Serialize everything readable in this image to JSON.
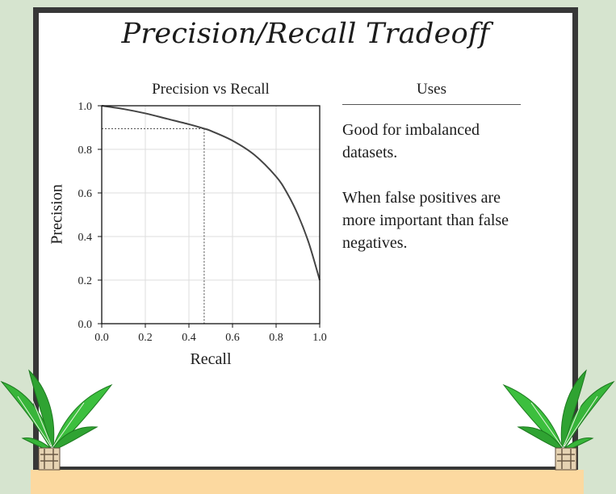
{
  "title": "Precision/Recall Tradeoff",
  "uses": {
    "heading": "Uses",
    "items": [
      "Good for imbalanced datasets.",
      "When false positives are more important than false negatives."
    ]
  },
  "colors": {
    "board_frame": "#373737",
    "background": "#d6e4cf",
    "shelf": "#fcd9a0",
    "curve": "#444444",
    "grid": "#dddddd",
    "leaf": "#2e9e2e"
  },
  "icons": [
    "potted-plant-icon",
    "potted-plant-icon"
  ],
  "chart_data": {
    "type": "line",
    "title": "Precision vs Recall",
    "xlabel": "Recall",
    "ylabel": "Precision",
    "xlim": [
      0,
      1
    ],
    "ylim": [
      0,
      1
    ],
    "x_ticks": [
      "0.0",
      "0.2",
      "0.4",
      "0.6",
      "0.8",
      "1.0"
    ],
    "y_ticks": [
      "0.0",
      "0.2",
      "0.4",
      "0.6",
      "0.8",
      "1.0"
    ],
    "grid": true,
    "legend": "none",
    "series": [
      {
        "x": [
          0.0,
          0.1,
          0.2,
          0.3,
          0.4,
          0.47,
          0.5,
          0.6,
          0.7,
          0.8,
          0.85,
          0.9,
          0.95,
          1.0
        ],
        "y": [
          1.0,
          0.985,
          0.965,
          0.94,
          0.915,
          0.895,
          0.885,
          0.84,
          0.775,
          0.675,
          0.6,
          0.5,
          0.37,
          0.2
        ]
      }
    ],
    "annotations": [
      {
        "type": "crosshair",
        "x": 0.47,
        "y": 0.895,
        "style": "dotted"
      }
    ]
  }
}
